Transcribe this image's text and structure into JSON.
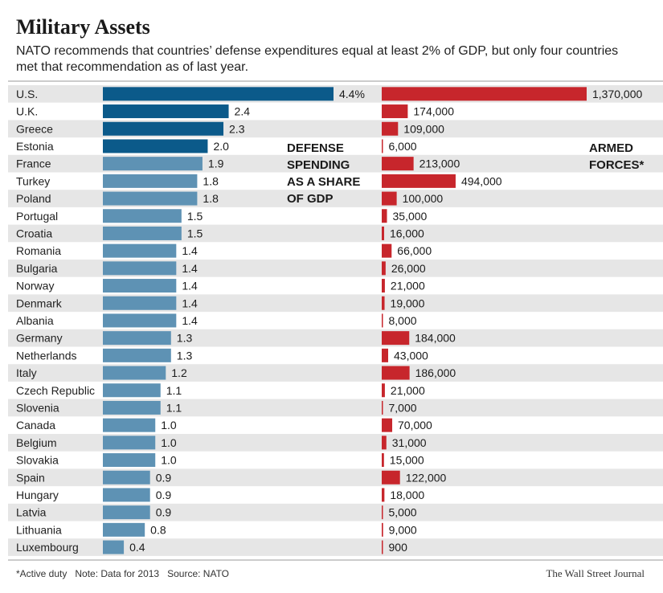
{
  "title": "Military Assets",
  "subtitle_lines": [
    "NATO recommends that countries’ defense expenditures equal at least 2% of GDP, but only four countries",
    "met that recommendation as of last year."
  ],
  "footer": {
    "note": "*Active duty   Note: Data for 2013   Source: NATO",
    "credit": "The Wall Street Journal"
  },
  "colors": {
    "spending_above_target": "#0b5a8a",
    "spending_below_target": "#5e92b4",
    "armed_forces": "#c7262c",
    "row_stripe": "#e6e6e6"
  },
  "chart_data": [
    {
      "type": "bar",
      "orientation": "horizontal",
      "title_lines": [
        "DEFENSE",
        "SPENDING",
        "AS A SHARE",
        "OF GDP"
      ],
      "categories": [
        "U.S.",
        "U.K.",
        "Greece",
        "Estonia",
        "France",
        "Turkey",
        "Poland",
        "Portugal",
        "Croatia",
        "Romania",
        "Bulgaria",
        "Norway",
        "Denmark",
        "Albania",
        "Germany",
        "Netherlands",
        "Italy",
        "Czech Republic",
        "Slovenia",
        "Canada",
        "Belgium",
        "Slovakia",
        "Spain",
        "Hungary",
        "Latvia",
        "Lithuania",
        "Luxembourg"
      ],
      "values": [
        4.4,
        2.4,
        2.3,
        2.0,
        1.9,
        1.8,
        1.8,
        1.5,
        1.5,
        1.4,
        1.4,
        1.4,
        1.4,
        1.4,
        1.3,
        1.3,
        1.2,
        1.1,
        1.1,
        1.0,
        1.0,
        1.0,
        0.9,
        0.9,
        0.9,
        0.8,
        0.4
      ],
      "labels": [
        "4.4%",
        "2.4",
        "2.3",
        "2.0",
        "1.9",
        "1.8",
        "1.8",
        "1.5",
        "1.5",
        "1.4",
        "1.4",
        "1.4",
        "1.4",
        "1.4",
        "1.3",
        "1.3",
        "1.2",
        "1.1",
        "1.1",
        "1.0",
        "1.0",
        "1.0",
        "0.9",
        "0.9",
        "0.9",
        "0.8",
        "0.4"
      ],
      "unit": "% of GDP",
      "target": 2.0,
      "xlim": [
        0,
        4.4
      ],
      "grid": false,
      "legend": "none"
    },
    {
      "type": "bar",
      "orientation": "horizontal",
      "title_lines": [
        "ARMED",
        "FORCES*"
      ],
      "categories": [
        "U.S.",
        "U.K.",
        "Greece",
        "Estonia",
        "France",
        "Turkey",
        "Poland",
        "Portugal",
        "Croatia",
        "Romania",
        "Bulgaria",
        "Norway",
        "Denmark",
        "Albania",
        "Germany",
        "Netherlands",
        "Italy",
        "Czech Republic",
        "Slovenia",
        "Canada",
        "Belgium",
        "Slovakia",
        "Spain",
        "Hungary",
        "Latvia",
        "Lithuania",
        "Luxembourg"
      ],
      "values": [
        1370000,
        174000,
        109000,
        6000,
        213000,
        494000,
        100000,
        35000,
        16000,
        66000,
        26000,
        21000,
        19000,
        8000,
        184000,
        43000,
        186000,
        21000,
        7000,
        70000,
        31000,
        15000,
        122000,
        18000,
        5000,
        9000,
        900
      ],
      "labels": [
        "1,370,000",
        "174,000",
        "109,000",
        "6,000",
        "213,000",
        "494,000",
        "100,000",
        "35,000",
        "16,000",
        "66,000",
        "26,000",
        "21,000",
        "19,000",
        "8,000",
        "184,000",
        "43,000",
        "186,000",
        "21,000",
        "7,000",
        "70,000",
        "31,000",
        "15,000",
        "122,000",
        "18,000",
        "5,000",
        "9,000",
        "900"
      ],
      "xlim": [
        0,
        1370000
      ],
      "grid": false,
      "legend": "none"
    }
  ]
}
